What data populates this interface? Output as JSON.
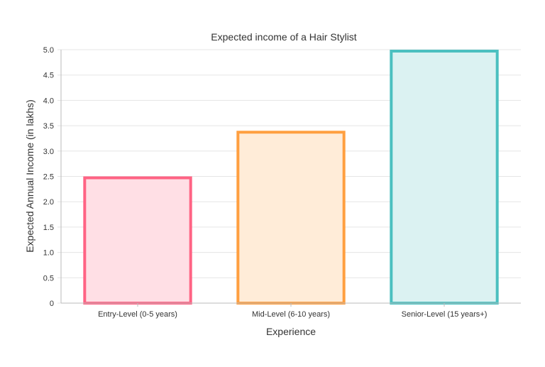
{
  "chart_data": {
    "type": "bar",
    "title": "Expected income of a Hair Stylist",
    "xlabel": "Experience",
    "ylabel": "Expected Annual Income (in lakhs)",
    "categories": [
      "Entry-Level (0-5 years)",
      "Mid-Level (6-10 years)",
      "Senior-Level (15 years+)"
    ],
    "values": [
      2.5,
      3.4,
      5.0
    ],
    "ylim": [
      0,
      5
    ],
    "yticks": [
      "0",
      "0.5",
      "1.0",
      "1.5",
      "2.0",
      "2.5",
      "3.0",
      "3.5",
      "4.0",
      "4.5",
      "5.0"
    ],
    "grid": true,
    "legend": "none",
    "colors": {
      "border": [
        "#ff6384",
        "#ff9f40",
        "#4bc0c0"
      ],
      "fill": [
        "#ffdfe5",
        "#ffecd8",
        "#dbf2f2"
      ]
    }
  }
}
